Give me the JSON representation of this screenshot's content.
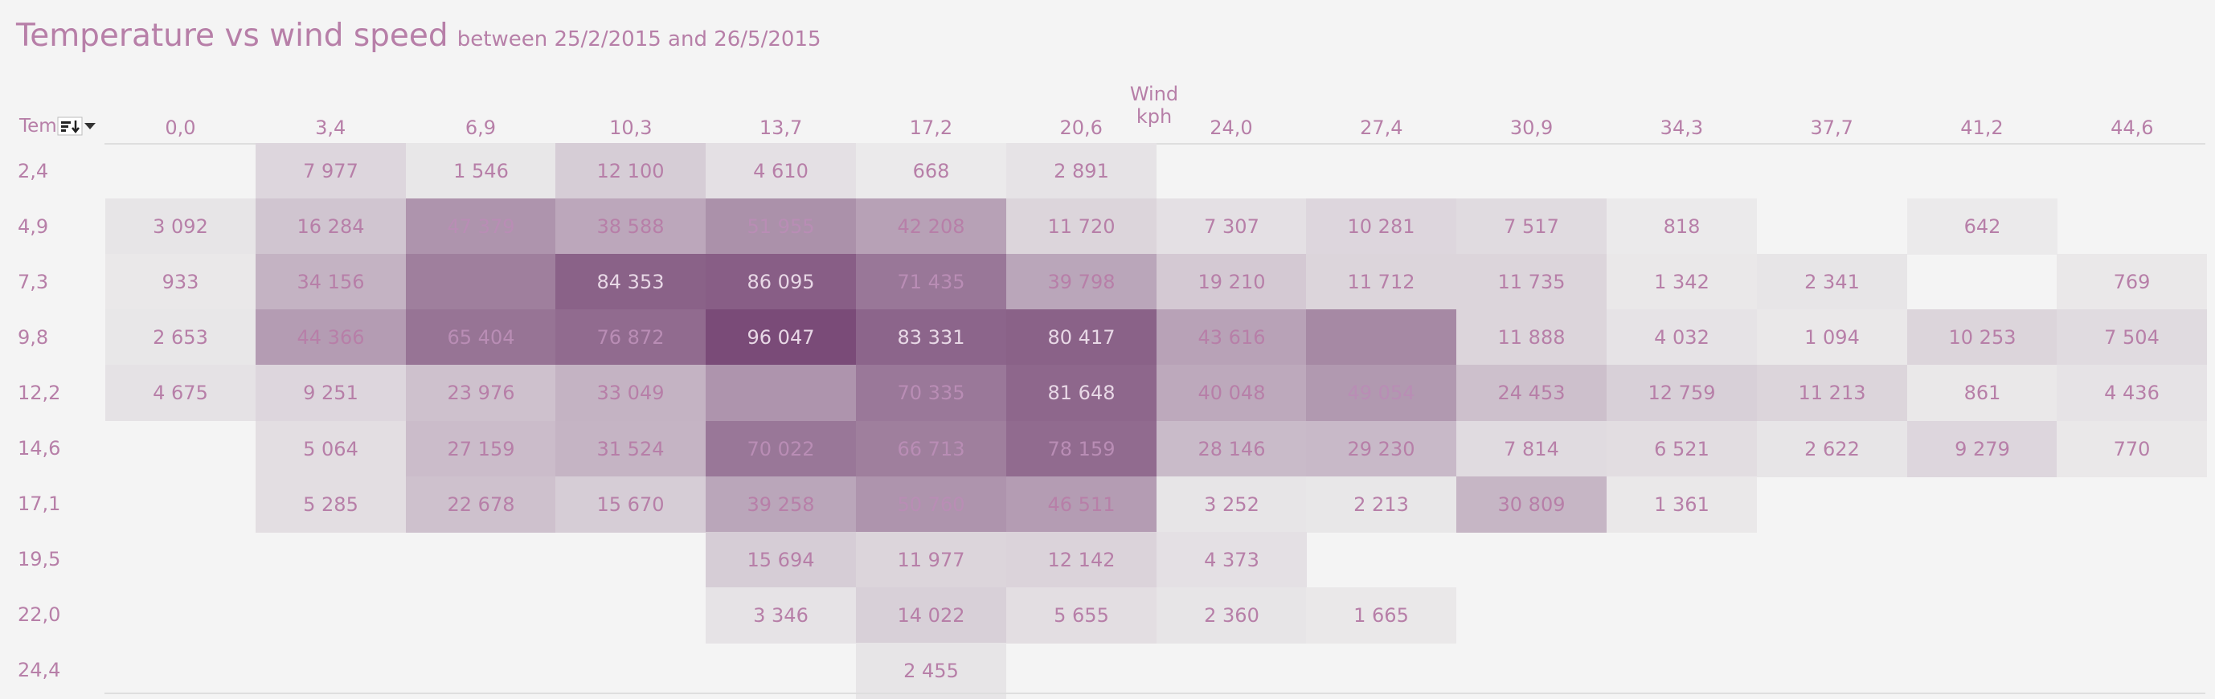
{
  "title": "Temperature vs wind speed",
  "subtitle": "between 25/2/2015 and 26/5/2015",
  "row_field_label": "Tem",
  "icons": {
    "sort": "sort-icon",
    "dropdown": "dropdown-caret-icon"
  },
  "colors": {
    "text": "#b77fa8",
    "background": "#f4f4f4",
    "low": "#ededed",
    "high": "#7a4b78"
  },
  "chart_data": {
    "type": "heatmap",
    "xlabel": "Wind kph",
    "x_categories": [
      "0,0",
      "3,4",
      "6,9",
      "10,3",
      "13,7",
      "17,2",
      "20,6",
      "24,0",
      "27,4",
      "30,9",
      "34,3",
      "37,7",
      "41,2",
      "44,6"
    ],
    "y_categories": [
      "2,4",
      "4,9",
      "7,3",
      "9,8",
      "12,2",
      "14,6",
      "17,1",
      "19,5",
      "22,0",
      "24,4"
    ],
    "values": [
      [
        null,
        "7 977",
        "1 546",
        "12 100",
        "4 610",
        "668",
        "2 891",
        null,
        null,
        null,
        null,
        null,
        null,
        null
      ],
      [
        "3 092",
        "16 284",
        "47 379",
        "38 588",
        "51 955",
        "42 208",
        "11 720",
        "7 307",
        "10 281",
        "7 517",
        "818",
        null,
        "642",
        null
      ],
      [
        "933",
        "34 156",
        "",
        "84 353",
        "86 095",
        "71 435",
        "39 798",
        "19 210",
        "11 712",
        "11 735",
        "1 342",
        "2 341",
        null,
        "769"
      ],
      [
        "2 653",
        "44 366",
        "65 404",
        "76 872",
        "96 047",
        "83 331",
        "80 417",
        "43 616",
        "",
        "11 888",
        "4 032",
        "1 094",
        "10 253",
        "7 504"
      ],
      [
        "4 675",
        "9 251",
        "23 976",
        "33 049",
        "",
        "70 335",
        "81 648",
        "40 048",
        "49 054",
        "24 453",
        "12 759",
        "11 213",
        "861",
        "4 436"
      ],
      [
        null,
        "5 064",
        "27 159",
        "31 524",
        "70 022",
        "66 713",
        "78 159",
        "28 146",
        "29 230",
        "7 814",
        "6 521",
        "2 622",
        "9 279",
        "770"
      ],
      [
        null,
        "5 285",
        "22 678",
        "15 670",
        "39 258",
        "50 760",
        "46 511",
        "3 252",
        "2 213",
        "30 809",
        "1 361",
        null,
        null,
        null
      ],
      [
        null,
        null,
        null,
        null,
        "15 694",
        "11 977",
        "12 142",
        "4 373",
        null,
        null,
        null,
        null,
        null,
        null
      ],
      [
        null,
        null,
        null,
        null,
        "3 346",
        "14 022",
        "5 655",
        "2 360",
        "1 665",
        null,
        null,
        null,
        null,
        null
      ],
      [
        null,
        null,
        null,
        null,
        null,
        "2 455",
        null,
        null,
        null,
        null,
        null,
        null,
        null,
        null
      ]
    ],
    "intensity": [
      [
        null,
        0.14,
        0.04,
        0.2,
        0.08,
        0.02,
        0.06,
        null,
        null,
        null,
        null,
        null,
        null,
        null
      ],
      [
        0.05,
        0.25,
        0.55,
        0.43,
        0.57,
        0.47,
        0.15,
        0.08,
        0.14,
        0.11,
        0.02,
        null,
        0.02,
        null
      ],
      [
        0.03,
        0.36,
        0.68,
        0.86,
        0.88,
        0.73,
        0.44,
        0.22,
        0.15,
        0.15,
        0.03,
        0.05,
        null,
        0.03
      ],
      [
        0.04,
        0.5,
        0.75,
        0.8,
        1.0,
        0.84,
        0.86,
        0.46,
        0.62,
        0.15,
        0.06,
        0.03,
        0.15,
        0.11
      ],
      [
        0.07,
        0.14,
        0.27,
        0.36,
        0.55,
        0.72,
        0.83,
        0.42,
        0.52,
        0.28,
        0.18,
        0.15,
        0.03,
        0.06
      ],
      [
        null,
        0.09,
        0.3,
        0.35,
        0.73,
        0.68,
        0.8,
        0.31,
        0.32,
        0.11,
        0.1,
        0.05,
        0.14,
        0.03
      ],
      [
        null,
        0.09,
        0.27,
        0.2,
        0.44,
        0.55,
        0.5,
        0.05,
        0.04,
        0.34,
        0.03,
        null,
        null,
        null
      ],
      [
        null,
        null,
        null,
        null,
        0.2,
        0.15,
        0.16,
        0.08,
        null,
        null,
        null,
        null,
        null,
        null
      ],
      [
        null,
        null,
        null,
        null,
        0.06,
        0.18,
        0.09,
        0.05,
        0.03,
        null,
        null,
        null,
        null,
        null
      ],
      [
        null,
        null,
        null,
        null,
        null,
        0.05,
        null,
        null,
        null,
        null,
        null,
        null,
        null,
        null
      ]
    ]
  }
}
